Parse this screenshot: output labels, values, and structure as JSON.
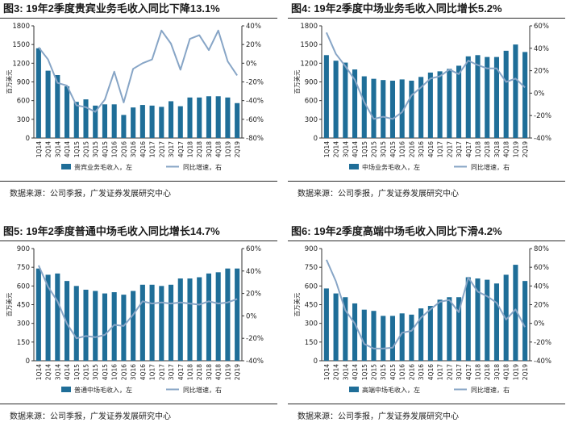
{
  "panels": [
    {
      "figure_label": "图3:",
      "title": "19年2季度贵宾业务毛收入同比下降13.1%",
      "source": "数据来源：公司季报，广发证券发展研究中心"
    },
    {
      "figure_label": "图4:",
      "title": "19年2季度中场业务毛收入同比增长5.2%",
      "source": "数据来源：公司季报，广发证券发展研究中心"
    },
    {
      "figure_label": "图5:",
      "title": "19年2季度普通中场毛收入同比增长14.7%",
      "source": "数据来源：公司季报，广发证券发展研究中心"
    },
    {
      "figure_label": "图6:",
      "title": "19年2季度高端中场毛收入同比下滑4.2%",
      "source": "数据来源：公司季报，广发证券发展研究中心"
    }
  ],
  "colors": {
    "bar": "#1f6e98",
    "line": "#87a5c6",
    "axis": "#333333",
    "title_rule": "#2b2b2b"
  },
  "chart_data": [
    {
      "type": "bar+line",
      "title": "19年2季度贵宾业务毛收入同比下降13.1%",
      "ylabel": "百万美元",
      "categories": [
        "1Q14",
        "2Q14",
        "3Q14",
        "4Q14",
        "1Q15",
        "2Q15",
        "3Q15",
        "4Q15",
        "1Q16",
        "2Q16",
        "3Q16",
        "4Q16",
        "1Q17",
        "2Q17",
        "3Q17",
        "4Q17",
        "1Q18",
        "2Q18",
        "3Q18",
        "4Q18",
        "1Q19",
        "2Q19"
      ],
      "ylim_left": [
        0,
        1800
      ],
      "yticks_left": [
        0,
        300,
        600,
        900,
        1200,
        1500,
        1800
      ],
      "ylim_right": [
        -80,
        40
      ],
      "yticks_right": [
        -80,
        -60,
        -40,
        -20,
        0,
        20,
        40
      ],
      "series": [
        {
          "name": "贵宾业务毛收入，左",
          "axis": "left",
          "type": "bar",
          "values": [
            1440,
            1080,
            1010,
            830,
            580,
            620,
            520,
            540,
            540,
            370,
            490,
            530,
            520,
            500,
            590,
            510,
            650,
            650,
            670,
            670,
            650,
            560
          ]
        },
        {
          "name": "同比增速，右",
          "axis": "right",
          "type": "line",
          "values": [
            17,
            4,
            -21,
            -24,
            -45,
            -47,
            -52,
            -39,
            -9,
            -42,
            -6,
            0,
            4,
            35,
            21,
            -7,
            26,
            30,
            14,
            35,
            2,
            -13
          ]
        }
      ]
    },
    {
      "type": "bar+line",
      "title": "19年2季度中场业务毛收入同比增长5.2%",
      "ylabel": "百万美元",
      "categories": [
        "1Q14",
        "2Q14",
        "3Q14",
        "4Q14",
        "1Q15",
        "2Q15",
        "3Q15",
        "4Q15",
        "1Q16",
        "2Q16",
        "3Q16",
        "4Q16",
        "1Q17",
        "2Q17",
        "3Q17",
        "4Q17",
        "1Q18",
        "2Q18",
        "3Q18",
        "4Q18",
        "1Q19",
        "2Q19"
      ],
      "ylim_left": [
        0,
        1800
      ],
      "yticks_left": [
        0,
        300,
        600,
        900,
        1200,
        1500,
        1800
      ],
      "ylim_right": [
        -40,
        60
      ],
      "yticks_right": [
        -40,
        -20,
        0,
        20,
        40,
        60
      ],
      "series": [
        {
          "name": "中场业务毛收入，左",
          "axis": "left",
          "type": "bar",
          "values": [
            1330,
            1240,
            1210,
            1100,
            990,
            950,
            930,
            920,
            940,
            920,
            980,
            1050,
            1070,
            1110,
            1160,
            1310,
            1330,
            1300,
            1300,
            1400,
            1500,
            1380
          ]
        },
        {
          "name": "同比增速，右",
          "axis": "right",
          "type": "line",
          "values": [
            54,
            35,
            24,
            12,
            -8,
            -23,
            -21,
            -23,
            -17,
            -2,
            5,
            13,
            15,
            21,
            17,
            29,
            25,
            22,
            22,
            10,
            13,
            5
          ]
        }
      ]
    },
    {
      "type": "bar+line",
      "title": "19年2季度普通中场毛收入同比增长14.7%",
      "ylabel": "百万美元",
      "categories": [
        "1Q14",
        "2Q14",
        "3Q14",
        "4Q14",
        "1Q15",
        "2Q15",
        "3Q15",
        "4Q15",
        "1Q16",
        "2Q16",
        "3Q16",
        "4Q16",
        "1Q17",
        "2Q17",
        "3Q17",
        "4Q17",
        "1Q18",
        "2Q18",
        "3Q18",
        "4Q18",
        "1Q19",
        "2Q19"
      ],
      "ylim_left": [
        0,
        900
      ],
      "yticks_left": [
        0,
        150,
        300,
        450,
        600,
        750,
        900
      ],
      "ylim_right": [
        -40,
        60
      ],
      "yticks_right": [
        -40,
        -20,
        0,
        20,
        40,
        60
      ],
      "series": [
        {
          "name": "普通中场毛收入，左",
          "axis": "left",
          "type": "bar",
          "values": [
            740,
            690,
            700,
            640,
            600,
            570,
            560,
            540,
            550,
            530,
            560,
            610,
            610,
            600,
            610,
            660,
            660,
            670,
            700,
            710,
            740,
            740
          ]
        },
        {
          "name": "同比增速，右",
          "axis": "right",
          "type": "line",
          "values": [
            45,
            26,
            13,
            -7,
            -20,
            -18,
            -19,
            -17,
            -8,
            -9,
            1,
            13,
            11,
            12,
            11,
            12,
            11,
            10,
            13,
            11,
            12,
            15
          ]
        }
      ]
    },
    {
      "type": "bar+line",
      "title": "19年2季度高端中场毛收入同比下滑4.2%",
      "ylabel": "百万美元",
      "categories": [
        "1Q14",
        "2Q14",
        "3Q14",
        "4Q14",
        "1Q15",
        "2Q15",
        "3Q15",
        "4Q15",
        "1Q16",
        "2Q16",
        "3Q16",
        "4Q16",
        "1Q17",
        "2Q17",
        "3Q17",
        "4Q17",
        "1Q18",
        "2Q18",
        "3Q18",
        "4Q18",
        "1Q19",
        "2Q19"
      ],
      "ylim_left": [
        0,
        900
      ],
      "yticks_left": [
        0,
        150,
        300,
        450,
        600,
        750,
        900
      ],
      "ylim_right": [
        -40,
        80
      ],
      "yticks_right": [
        -40,
        -20,
        0,
        20,
        40,
        60,
        80
      ],
      "series": [
        {
          "name": "高端中场毛收入，左",
          "axis": "left",
          "type": "bar",
          "values": [
            580,
            540,
            510,
            460,
            410,
            400,
            360,
            360,
            380,
            370,
            420,
            440,
            490,
            510,
            510,
            670,
            660,
            650,
            620,
            690,
            770,
            640
          ]
        },
        {
          "name": "同比增速，右",
          "axis": "right",
          "type": "line",
          "values": [
            68,
            45,
            14,
            0,
            -22,
            -27,
            -27,
            -26,
            -10,
            -8,
            6,
            15,
            23,
            25,
            12,
            49,
            34,
            29,
            22,
            4,
            15,
            -4
          ]
        }
      ]
    }
  ]
}
